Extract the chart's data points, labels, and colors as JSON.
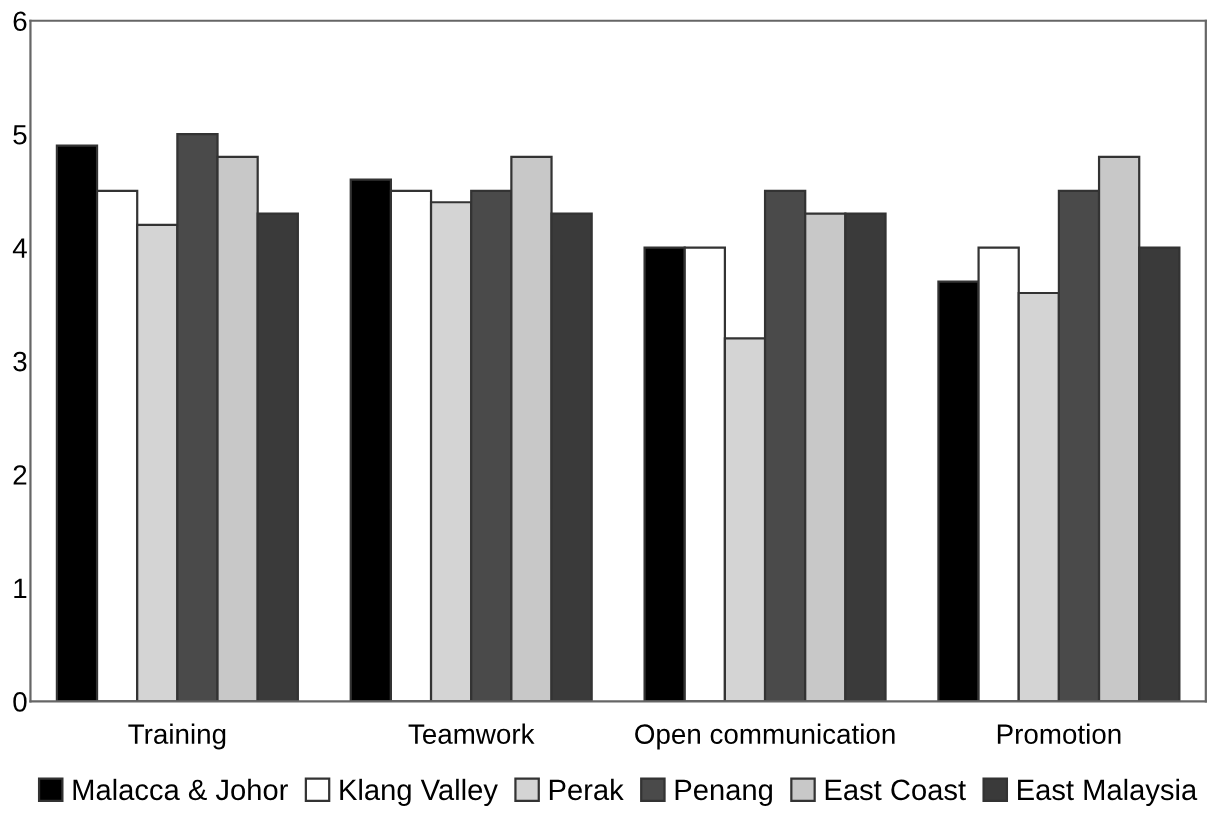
{
  "chart_data": {
    "type": "bar",
    "categories": [
      "Training",
      "Teamwork",
      "Open communication",
      "Promotion"
    ],
    "series": [
      {
        "name": "Malacca & Johor",
        "color": "#000000",
        "values": [
          4.9,
          4.6,
          4.0,
          3.7
        ]
      },
      {
        "name": "Klang Valley",
        "color": "#ffffff",
        "values": [
          4.5,
          4.5,
          4.0,
          4.0
        ]
      },
      {
        "name": "Perak",
        "color": "#d4d4d4",
        "values": [
          4.2,
          4.4,
          3.2,
          3.6
        ]
      },
      {
        "name": "Penang",
        "color": "#4a4a4a",
        "values": [
          5.0,
          4.5,
          4.5,
          4.5
        ]
      },
      {
        "name": "East Coast",
        "color": "#c8c8c8",
        "values": [
          4.8,
          4.8,
          4.3,
          4.8
        ]
      },
      {
        "name": "East Malaysia",
        "color": "#3a3a3a",
        "values": [
          4.3,
          4.3,
          4.3,
          4.0
        ]
      }
    ],
    "ylim": [
      0,
      6
    ],
    "yticks": [
      0,
      1,
      2,
      3,
      4,
      5,
      6
    ],
    "grid": false,
    "legend": "bottom"
  }
}
